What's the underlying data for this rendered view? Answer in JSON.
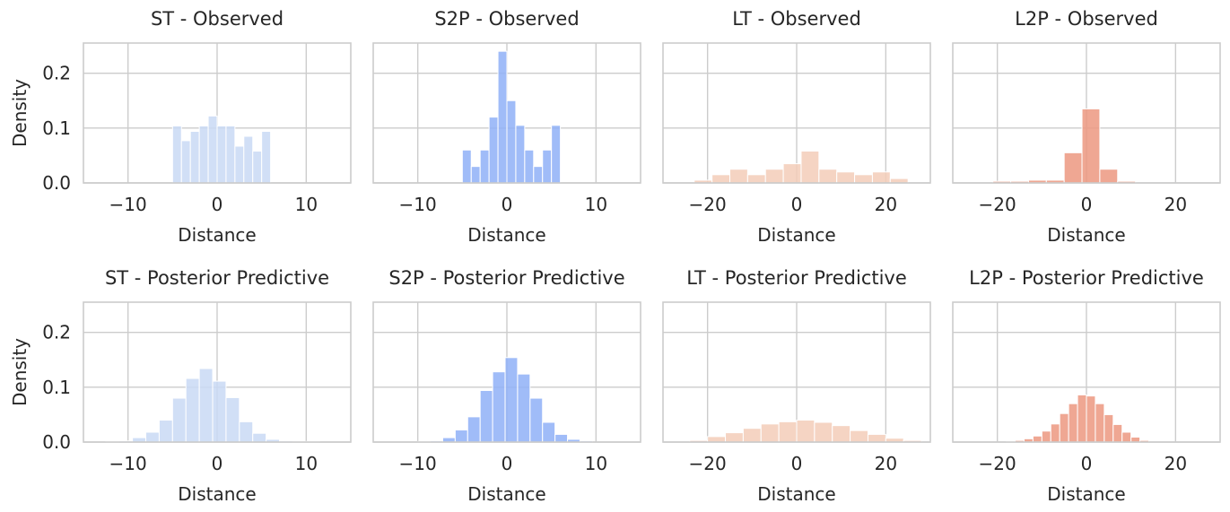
{
  "chart_data": [
    {
      "type": "bar",
      "title": "ST - Observed",
      "xlabel": "Distance",
      "ylabel": "Density",
      "xlim": [
        -15,
        15
      ],
      "ylim": [
        0,
        0.255
      ],
      "xticks": [
        -10,
        0,
        10
      ],
      "yticks": [
        0.0,
        0.1,
        0.2
      ],
      "color": "#c9d9f5",
      "bins": [
        [
          -5,
          -4
        ],
        [
          -4,
          -3
        ],
        [
          -3,
          -2
        ],
        [
          -2,
          -1
        ],
        [
          -1,
          0
        ],
        [
          0,
          1
        ],
        [
          1,
          2
        ],
        [
          2,
          3
        ],
        [
          3,
          4
        ],
        [
          4,
          5
        ],
        [
          5,
          6
        ]
      ],
      "values": [
        0.104,
        0.077,
        0.094,
        0.104,
        0.122,
        0.104,
        0.104,
        0.067,
        0.085,
        0.058,
        0.094
      ]
    },
    {
      "type": "bar",
      "title": "S2P - Observed",
      "xlabel": "Distance",
      "ylabel": "",
      "xlim": [
        -15,
        15
      ],
      "ylim": [
        0,
        0.255
      ],
      "xticks": [
        -10,
        0,
        10
      ],
      "yticks": [
        0.0,
        0.1,
        0.2
      ],
      "color": "#8fb0f7",
      "bins": [
        [
          -5,
          -4
        ],
        [
          -4,
          -3
        ],
        [
          -3,
          -2
        ],
        [
          -2,
          -1
        ],
        [
          -1,
          0
        ],
        [
          0,
          1
        ],
        [
          1,
          2
        ],
        [
          2,
          3
        ],
        [
          3,
          4
        ],
        [
          4,
          5
        ],
        [
          5,
          6
        ]
      ],
      "values": [
        0.06,
        0.03,
        0.06,
        0.12,
        0.24,
        0.15,
        0.105,
        0.06,
        0.03,
        0.06,
        0.105
      ]
    },
    {
      "type": "bar",
      "title": "LT - Observed",
      "xlabel": "Distance",
      "ylabel": "",
      "xlim": [
        -30,
        30
      ],
      "ylim": [
        0,
        0.255
      ],
      "xticks": [
        -20,
        0,
        20
      ],
      "yticks": [
        0.0,
        0.1,
        0.2
      ],
      "color": "#f3cdb8",
      "bins": [
        [
          -23,
          -19
        ],
        [
          -19,
          -15
        ],
        [
          -15,
          -11
        ],
        [
          -11,
          -7
        ],
        [
          -7,
          -3
        ],
        [
          -3,
          1
        ],
        [
          1,
          5
        ],
        [
          5,
          9
        ],
        [
          9,
          13
        ],
        [
          13,
          17
        ],
        [
          17,
          21
        ],
        [
          21,
          25
        ]
      ],
      "values": [
        0.005,
        0.015,
        0.025,
        0.015,
        0.025,
        0.035,
        0.058,
        0.025,
        0.02,
        0.015,
        0.02,
        0.008
      ]
    },
    {
      "type": "bar",
      "title": "L2P - Observed",
      "xlabel": "Distance",
      "ylabel": "",
      "xlim": [
        -30,
        30
      ],
      "ylim": [
        0,
        0.255
      ],
      "xticks": [
        -20,
        0,
        20
      ],
      "yticks": [
        0.0,
        0.1,
        0.2
      ],
      "color": "#ec9880",
      "bins": [
        [
          -21,
          -17
        ],
        [
          -17,
          -13
        ],
        [
          -13,
          -9
        ],
        [
          -9,
          -5
        ],
        [
          -5,
          -1
        ],
        [
          -1,
          3
        ],
        [
          3,
          7
        ],
        [
          7,
          11
        ]
      ],
      "values": [
        0.003,
        0.003,
        0.005,
        0.005,
        0.055,
        0.135,
        0.025,
        0.003
      ]
    },
    {
      "type": "bar",
      "title": "ST - Posterior Predictive",
      "xlabel": "Distance",
      "ylabel": "Density",
      "xlim": [
        -15,
        15
      ],
      "ylim": [
        0,
        0.255
      ],
      "xticks": [
        -10,
        0,
        10
      ],
      "yticks": [
        0.0,
        0.1,
        0.2
      ],
      "color": "#c9d9f5",
      "bins": [
        [
          -12.5,
          -11
        ],
        [
          -11,
          -9.5
        ],
        [
          -9.5,
          -8
        ],
        [
          -8,
          -6.5
        ],
        [
          -6.5,
          -5
        ],
        [
          -5,
          -3.5
        ],
        [
          -3.5,
          -2
        ],
        [
          -2,
          -0.5
        ],
        [
          -0.5,
          1
        ],
        [
          1,
          2.5
        ],
        [
          2.5,
          4
        ],
        [
          4,
          5.5
        ],
        [
          5.5,
          7
        ],
        [
          7,
          8.5
        ],
        [
          8.5,
          10
        ],
        [
          10,
          11.5
        ]
      ],
      "values": [
        0.001,
        0.002,
        0.008,
        0.018,
        0.04,
        0.08,
        0.116,
        0.134,
        0.111,
        0.081,
        0.037,
        0.016,
        0.005,
        0.002,
        0.001,
        0.001
      ]
    },
    {
      "type": "bar",
      "title": "S2P - Posterior Predictive",
      "xlabel": "Distance",
      "ylabel": "",
      "xlim": [
        -15,
        15
      ],
      "ylim": [
        0,
        0.255
      ],
      "xticks": [
        -10,
        0,
        10
      ],
      "yticks": [
        0.0,
        0.1,
        0.2
      ],
      "color": "#8fb0f7",
      "bins": [
        [
          -10,
          -8.6
        ],
        [
          -8.6,
          -7.2
        ],
        [
          -7.2,
          -5.8
        ],
        [
          -5.8,
          -4.4
        ],
        [
          -4.4,
          -3
        ],
        [
          -3,
          -1.6
        ],
        [
          -1.6,
          -0.2
        ],
        [
          -0.2,
          1.2
        ],
        [
          1.2,
          2.6
        ],
        [
          2.6,
          4
        ],
        [
          4,
          5.4
        ],
        [
          5.4,
          6.8
        ],
        [
          6.8,
          8.2
        ],
        [
          8.2,
          9.6
        ]
      ],
      "values": [
        0.001,
        0.002,
        0.008,
        0.022,
        0.046,
        0.094,
        0.128,
        0.154,
        0.124,
        0.08,
        0.036,
        0.014,
        0.005,
        0.002
      ]
    },
    {
      "type": "bar",
      "title": "LT - Posterior Predictive",
      "xlabel": "Distance",
      "ylabel": "",
      "xlim": [
        -30,
        30
      ],
      "ylim": [
        0,
        0.255
      ],
      "xticks": [
        -20,
        0,
        20
      ],
      "yticks": [
        0.0,
        0.1,
        0.2
      ],
      "color": "#f3cdb8",
      "bins": [
        [
          -24,
          -20
        ],
        [
          -20,
          -16
        ],
        [
          -16,
          -12
        ],
        [
          -12,
          -8
        ],
        [
          -8,
          -4
        ],
        [
          -4,
          0
        ],
        [
          0,
          4
        ],
        [
          4,
          8
        ],
        [
          8,
          12
        ],
        [
          12,
          16
        ],
        [
          16,
          20
        ],
        [
          20,
          24
        ],
        [
          24,
          28
        ]
      ],
      "values": [
        0.003,
        0.01,
        0.017,
        0.025,
        0.033,
        0.037,
        0.04,
        0.036,
        0.03,
        0.021,
        0.014,
        0.007,
        0.003
      ]
    },
    {
      "type": "bar",
      "title": "L2P - Posterior Predictive",
      "xlabel": "Distance",
      "ylabel": "",
      "xlim": [
        -30,
        30
      ],
      "ylim": [
        0,
        0.255
      ],
      "xticks": [
        -20,
        0,
        20
      ],
      "yticks": [
        0.0,
        0.1,
        0.2
      ],
      "color": "#ec9880",
      "bins": [
        [
          -18,
          -16
        ],
        [
          -16,
          -14
        ],
        [
          -14,
          -12
        ],
        [
          -12,
          -10
        ],
        [
          -10,
          -8
        ],
        [
          -8,
          -6
        ],
        [
          -6,
          -4
        ],
        [
          -4,
          -2
        ],
        [
          -2,
          0
        ],
        [
          0,
          2
        ],
        [
          2,
          4
        ],
        [
          4,
          6
        ],
        [
          6,
          8
        ],
        [
          8,
          10
        ],
        [
          10,
          12
        ],
        [
          12,
          14
        ]
      ],
      "values": [
        0.001,
        0.003,
        0.006,
        0.011,
        0.02,
        0.033,
        0.052,
        0.07,
        0.086,
        0.084,
        0.07,
        0.05,
        0.032,
        0.018,
        0.009,
        0.003
      ]
    }
  ]
}
